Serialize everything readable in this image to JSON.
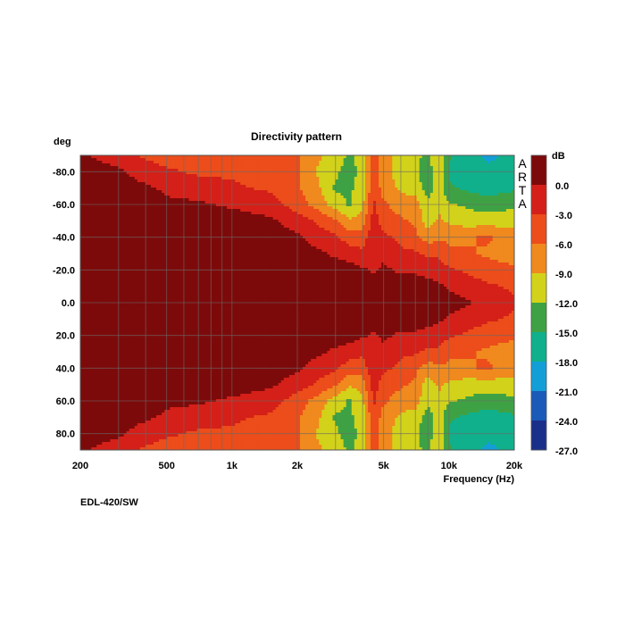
{
  "chart_data": {
    "type": "heatmap",
    "title": "Directivity pattern",
    "xlabel": "Frequency (Hz)",
    "ylabel": "deg",
    "x_scale": "log",
    "xlim": [
      200,
      20000
    ],
    "ylim": [
      -90,
      90
    ],
    "x_ticks": [
      {
        "value": 200,
        "label": "200"
      },
      {
        "value": 500,
        "label": "500"
      },
      {
        "value": 1000,
        "label": "1k"
      },
      {
        "value": 2000,
        "label": "2k"
      },
      {
        "value": 5000,
        "label": "5k"
      },
      {
        "value": 10000,
        "label": "10k"
      },
      {
        "value": 20000,
        "label": "20k"
      }
    ],
    "y_ticks": [
      {
        "value": -80,
        "label": "-80.0"
      },
      {
        "value": -60,
        "label": "-60.0"
      },
      {
        "value": -40,
        "label": "-40.0"
      },
      {
        "value": -20,
        "label": "-20.0"
      },
      {
        "value": 0,
        "label": "0.0"
      },
      {
        "value": 20,
        "label": "20.0"
      },
      {
        "value": 40,
        "label": "40.0"
      },
      {
        "value": 60,
        "label": "60.0"
      },
      {
        "value": 80,
        "label": "80.0"
      }
    ],
    "colorbar": {
      "unit": "dB",
      "levels": [
        "0.0",
        "-3.0",
        "-6.0",
        "-9.0",
        "-12.0",
        "-15.0",
        "-18.0",
        "-21.0",
        "-24.0",
        "-27.0"
      ],
      "colors": [
        "#7d0a0a",
        "#d42018",
        "#ec4d1a",
        "#f0891e",
        "#d2d21a",
        "#3ea244",
        "#10b08c",
        "#149ed8",
        "#1a5ab8",
        "#1a2f8a"
      ]
    },
    "watermark": "ARTA",
    "grid": true,
    "frequencies_hz": [
      200,
      300,
      400,
      500,
      700,
      1000,
      1500,
      2000,
      2500,
      3000,
      3500,
      4000,
      4500,
      5000,
      6000,
      7000,
      8000,
      9000,
      10000,
      12000,
      15000,
      20000
    ],
    "angles_deg": [
      0,
      10,
      20,
      30,
      40,
      50,
      60,
      70,
      80,
      90
    ],
    "level_db": [
      [
        0,
        0,
        0,
        0,
        0,
        0,
        0,
        0,
        0,
        0,
        0,
        0,
        0,
        0,
        0,
        0,
        0,
        0,
        0,
        -1,
        -3,
        -4
      ],
      [
        0,
        0,
        0,
        0,
        0,
        0,
        0,
        0,
        0,
        0,
        0,
        0,
        0,
        0,
        0,
        0,
        0,
        -1,
        -2,
        -3,
        -4,
        -5
      ],
      [
        0,
        0,
        0,
        0,
        0,
        0,
        0,
        0,
        0,
        0,
        0,
        -1,
        -2,
        -1,
        -2,
        -2,
        -3,
        -3,
        -4,
        -5,
        -6,
        -7
      ],
      [
        0,
        0,
        0,
        0,
        0,
        0,
        0,
        0,
        -1,
        -2,
        -3,
        -4,
        -3,
        -2,
        -4,
        -4,
        -5,
        -5,
        -7,
        -7,
        -8,
        -9
      ],
      [
        0,
        0,
        0,
        0,
        0,
        0,
        0,
        -1,
        -3,
        -4,
        -6,
        -6,
        -2,
        -4,
        -5,
        -7,
        -9,
        -8,
        -8,
        -8,
        -7,
        -9
      ],
      [
        0,
        0,
        0,
        0,
        0,
        0,
        -1,
        -3,
        -5,
        -7,
        -10,
        -9,
        -3,
        -6,
        -7,
        -8,
        -12,
        -10,
        -11,
        -12,
        -12,
        -12
      ],
      [
        0,
        0,
        0,
        -1,
        -1,
        -2,
        -3,
        -6,
        -9,
        -12,
        -14,
        -11,
        -4,
        -7,
        -9,
        -9,
        -13,
        -11,
        -13,
        -14,
        -15,
        -14
      ],
      [
        0,
        0,
        -1,
        -2,
        -3,
        -4,
        -5,
        -7,
        -10,
        -14,
        -14,
        -12,
        -5,
        -9,
        -11,
        -12,
        -15,
        -12,
        -16,
        -17,
        -18,
        -17
      ],
      [
        0,
        -1,
        -3,
        -4,
        -5,
        -5,
        -6,
        -7,
        -11,
        -13,
        -15,
        -12,
        -6,
        -9,
        -12,
        -13,
        -15,
        -11,
        -17,
        -18,
        -19,
        -18
      ],
      [
        -1,
        -3,
        -5,
        -6,
        -6,
        -6,
        -6,
        -7,
        -10,
        -12,
        -14,
        -12,
        -6,
        -9,
        -12,
        -13,
        -14,
        -11,
        -16,
        -18,
        -20,
        -19
      ]
    ]
  },
  "caption": "EDL-420/SW"
}
